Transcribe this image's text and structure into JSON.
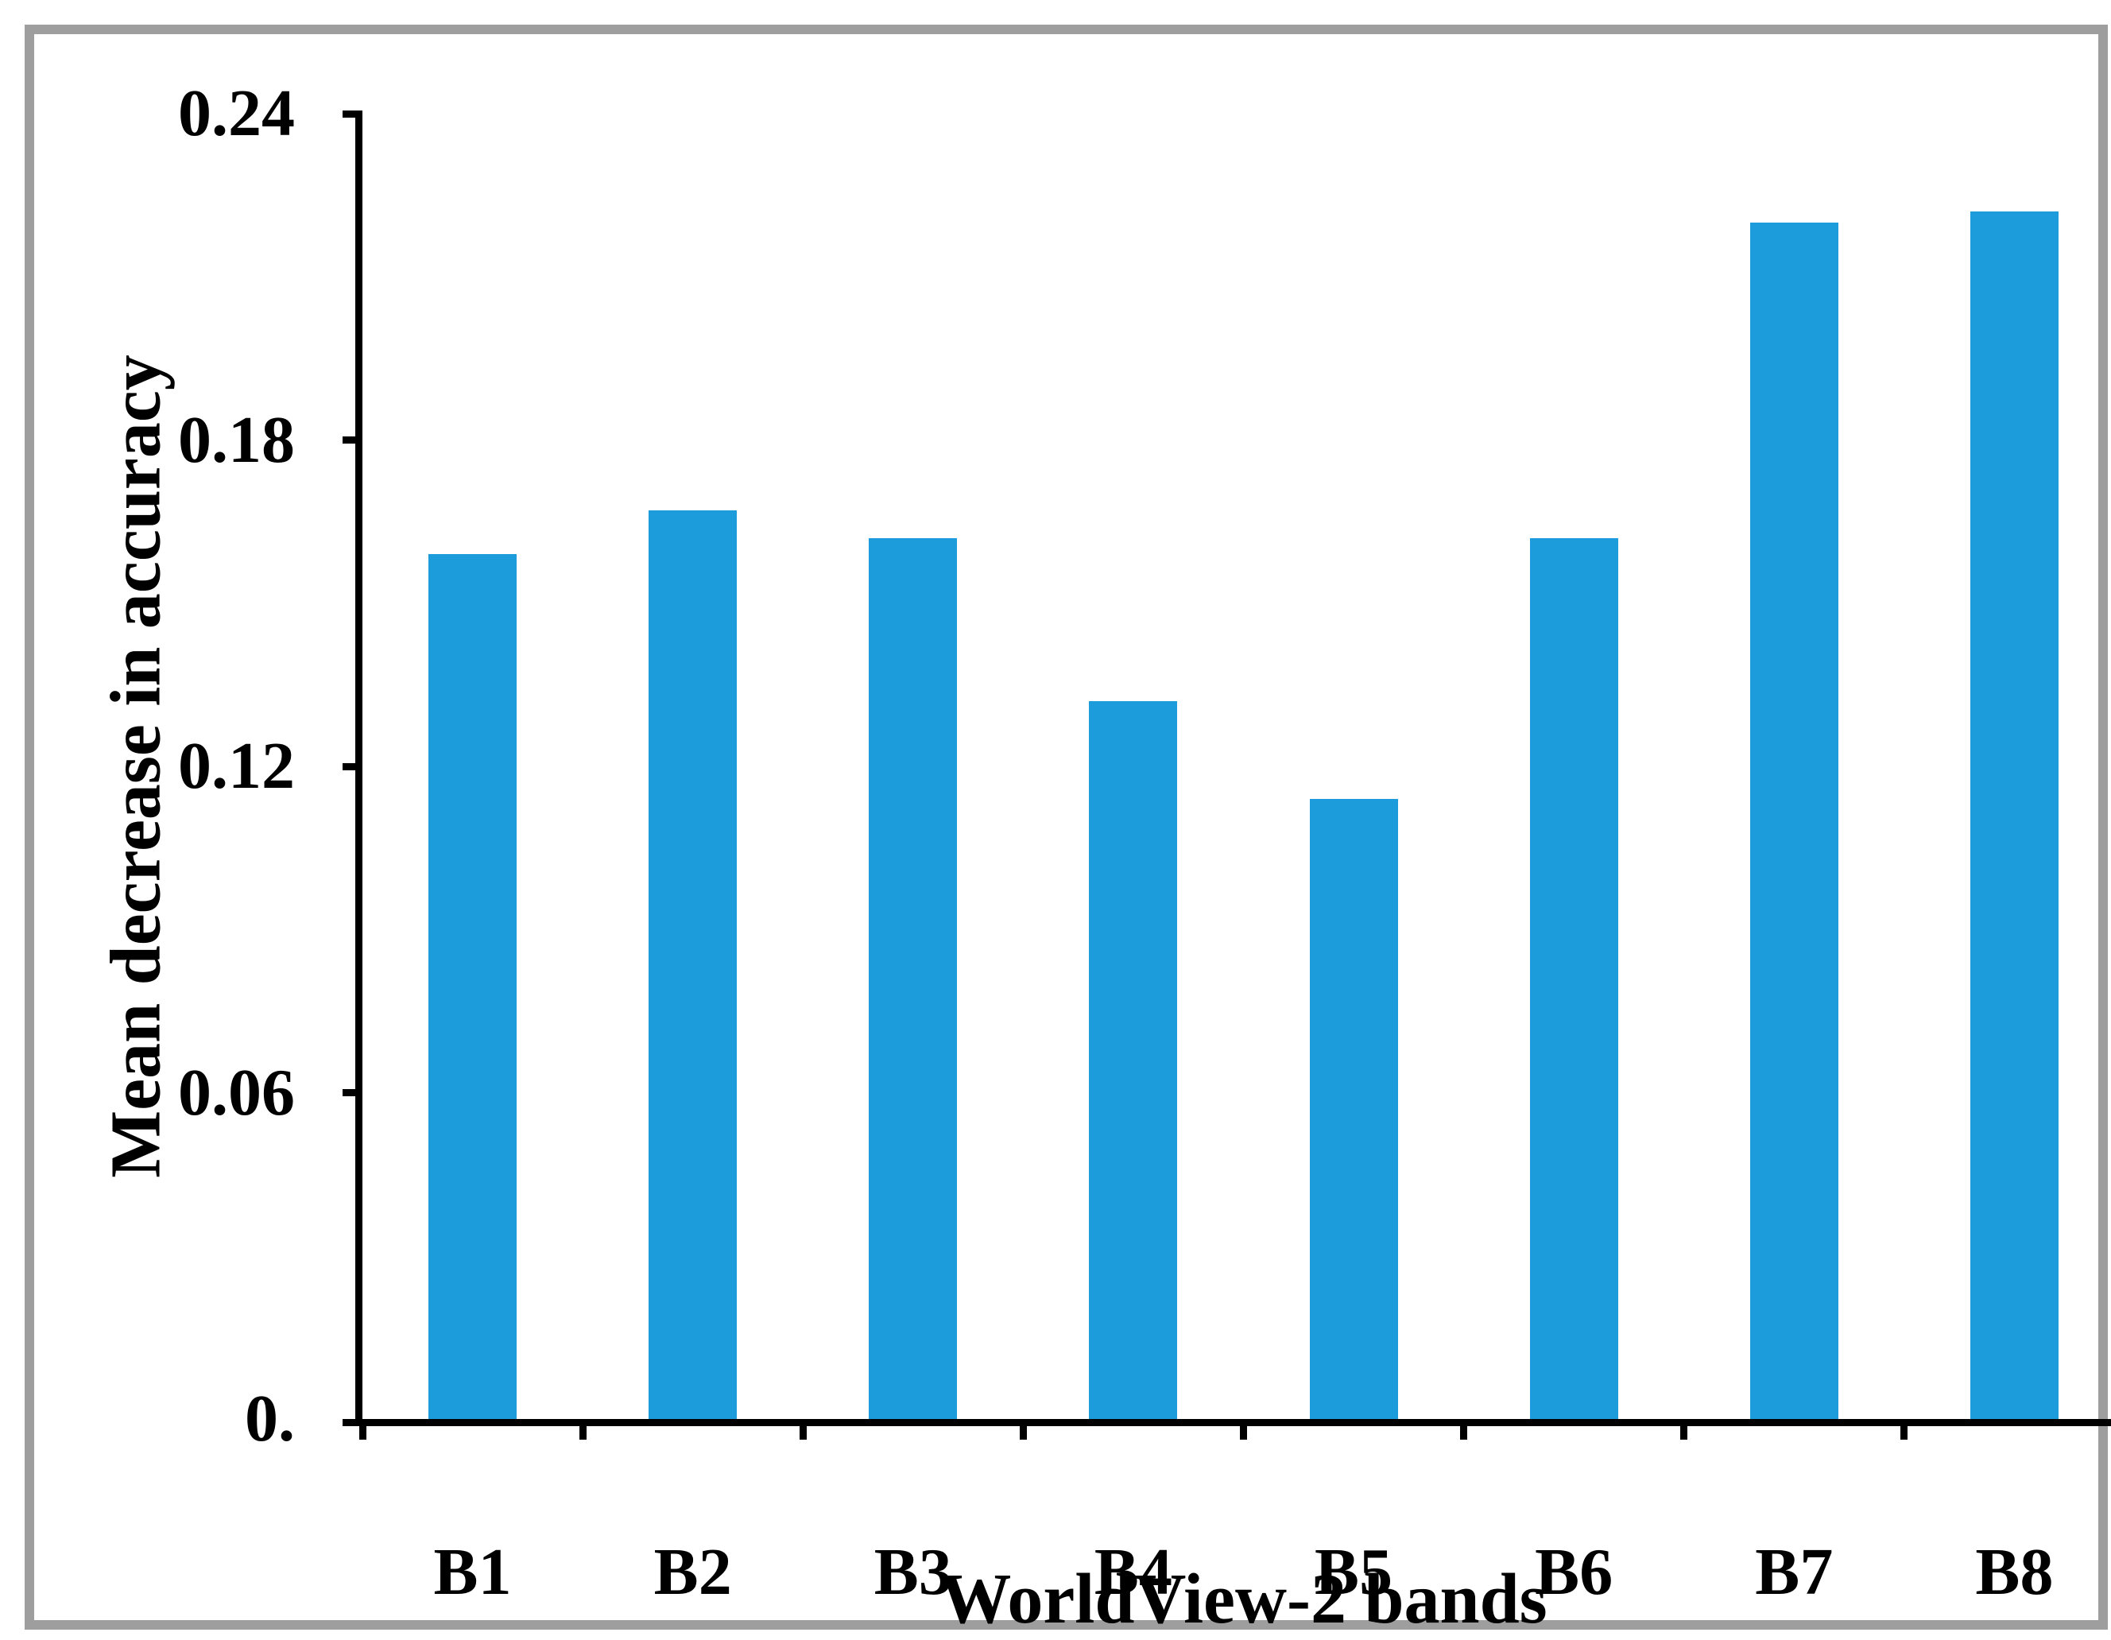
{
  "chart_data": {
    "type": "bar",
    "title": "",
    "xlabel": "WorldView-2 bands",
    "ylabel": "Mean decrease in accuracy",
    "categories": [
      "B1",
      "B2",
      "B3",
      "B4",
      "B5",
      "B6",
      "B7",
      "B8"
    ],
    "values": [
      0.159,
      0.167,
      0.162,
      0.132,
      0.114,
      0.162,
      0.22,
      0.222
    ],
    "ylim": [
      0,
      0.24
    ],
    "ytick_labels": [
      "0.24",
      "0.18",
      "0.12",
      "0.06",
      "0."
    ],
    "ytick_values": [
      0.24,
      0.18,
      0.12,
      0.06,
      0
    ],
    "grid": false,
    "legend": "none",
    "bar_color": "#1c9cda",
    "axis_color": "#000000",
    "frame_color": "#9e9e9e"
  }
}
